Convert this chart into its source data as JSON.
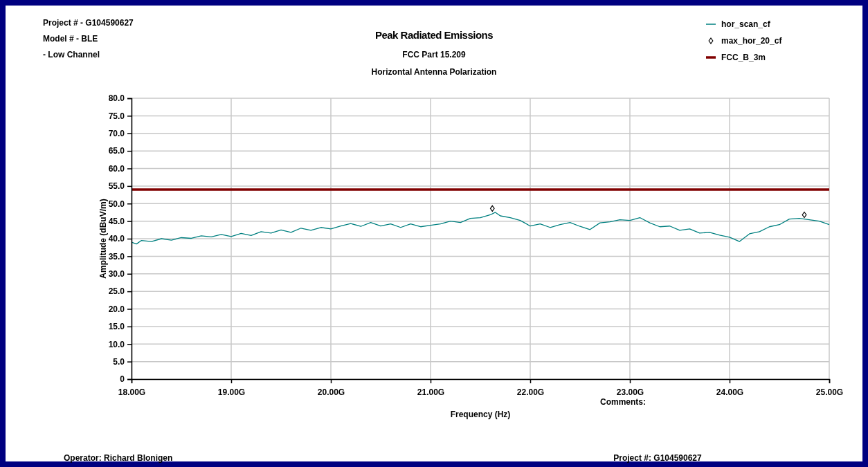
{
  "chart_data": {
    "type": "line",
    "title": "Peak Radiated Emissions",
    "subtitle": "FCC Part 15.209\nHorizontal Antenna Polarization",
    "xlabel": "Frequency (Hz)",
    "ylabel": "Amplitude (dBuV/m)",
    "annotations": [
      "Project # - G104590627",
      "Model # - BLE",
      " - Low Channel",
      "Comments:",
      "Operator: Richard Blonigen",
      "Project #: G104590627"
    ],
    "xlim": [
      18,
      25
    ],
    "xticks": [
      {
        "value": 18,
        "label": "18.00G"
      },
      {
        "value": 19,
        "label": "19.00G"
      },
      {
        "value": 20,
        "label": "20.00G"
      },
      {
        "value": 21,
        "label": "21.00G"
      },
      {
        "value": 22,
        "label": "22.00G"
      },
      {
        "value": 23,
        "label": "23.00G"
      },
      {
        "value": 24,
        "label": "24.00G"
      },
      {
        "value": 25,
        "label": "25.00G"
      }
    ],
    "ylim": [
      0,
      80
    ],
    "yticks": [
      {
        "value": 0,
        "label": "0"
      },
      {
        "value": 5,
        "label": "5.0"
      },
      {
        "value": 10,
        "label": "10.0"
      },
      {
        "value": 15,
        "label": "15.0"
      },
      {
        "value": 20,
        "label": "20.0"
      },
      {
        "value": 25,
        "label": "25.0"
      },
      {
        "value": 30,
        "label": "30.0"
      },
      {
        "value": 35,
        "label": "35.0"
      },
      {
        "value": 40,
        "label": "40.0"
      },
      {
        "value": 45,
        "label": "45.0"
      },
      {
        "value": 50,
        "label": "50.0"
      },
      {
        "value": 55,
        "label": "55.0"
      },
      {
        "value": 60,
        "label": "60.0"
      },
      {
        "value": 65,
        "label": "65.0"
      },
      {
        "value": 70,
        "label": "70.0"
      },
      {
        "value": 75,
        "label": "75.0"
      },
      {
        "value": 80,
        "label": "80.0"
      }
    ],
    "grid": true,
    "legend": "top right",
    "series": [
      {
        "name": "hor_scan_cf",
        "color": "#008080",
        "x": [
          18,
          18.05,
          18.1,
          18.2,
          18.3,
          18.4,
          18.5,
          18.6,
          18.7,
          18.8,
          18.9,
          19,
          19.1,
          19.2,
          19.3,
          19.4,
          19.5,
          19.6,
          19.7,
          19.8,
          19.9,
          20,
          20.1,
          20.2,
          20.3,
          20.4,
          20.5,
          20.6,
          20.7,
          20.8,
          20.9,
          21,
          21.1,
          21.2,
          21.3,
          21.4,
          21.5,
          21.6,
          21.65,
          21.7,
          21.8,
          21.9,
          22,
          22.1,
          22.2,
          22.3,
          22.4,
          22.5,
          22.6,
          22.7,
          22.8,
          22.9,
          23,
          23.1,
          23.2,
          23.3,
          23.4,
          23.5,
          23.6,
          23.7,
          23.8,
          23.9,
          24,
          24.1,
          24.2,
          24.3,
          24.4,
          24.5,
          24.6,
          24.7,
          24.8,
          24.9,
          25
        ],
        "values": [
          39,
          38.5,
          39.5,
          39.2,
          40,
          39.6,
          40.3,
          40.1,
          40.8,
          40.5,
          41.2,
          40.6,
          41.5,
          40.9,
          42,
          41.6,
          42.5,
          41.8,
          43,
          42.4,
          43.2,
          42.8,
          43.6,
          44.3,
          43.5,
          44.6,
          43.6,
          44.2,
          43.2,
          44.2,
          43.4,
          43.8,
          44.2,
          45,
          44.6,
          45.8,
          46,
          46.8,
          47.5,
          46.5,
          46,
          45.2,
          43.6,
          44.2,
          43.2,
          44,
          44.6,
          43.5,
          42.6,
          44.5,
          44.8,
          45.4,
          45.2,
          46,
          44.5,
          43.4,
          43.6,
          42.4,
          42.8,
          41.6,
          41.8,
          41,
          40.4,
          39.2,
          41.4,
          42,
          43.4,
          44,
          45.6,
          45.8,
          45.4,
          45,
          44
        ]
      },
      {
        "name": "max_hor_20_cf",
        "type": "scatter",
        "color": "#000000",
        "marker": "diamond",
        "x": [
          21.62,
          24.75
        ],
        "values": [
          48.6,
          46.8
        ]
      },
      {
        "name": "FCC_B_3m",
        "type": "line",
        "color": "#800000",
        "x": [
          18,
          25
        ],
        "values": [
          54,
          54
        ]
      }
    ]
  }
}
